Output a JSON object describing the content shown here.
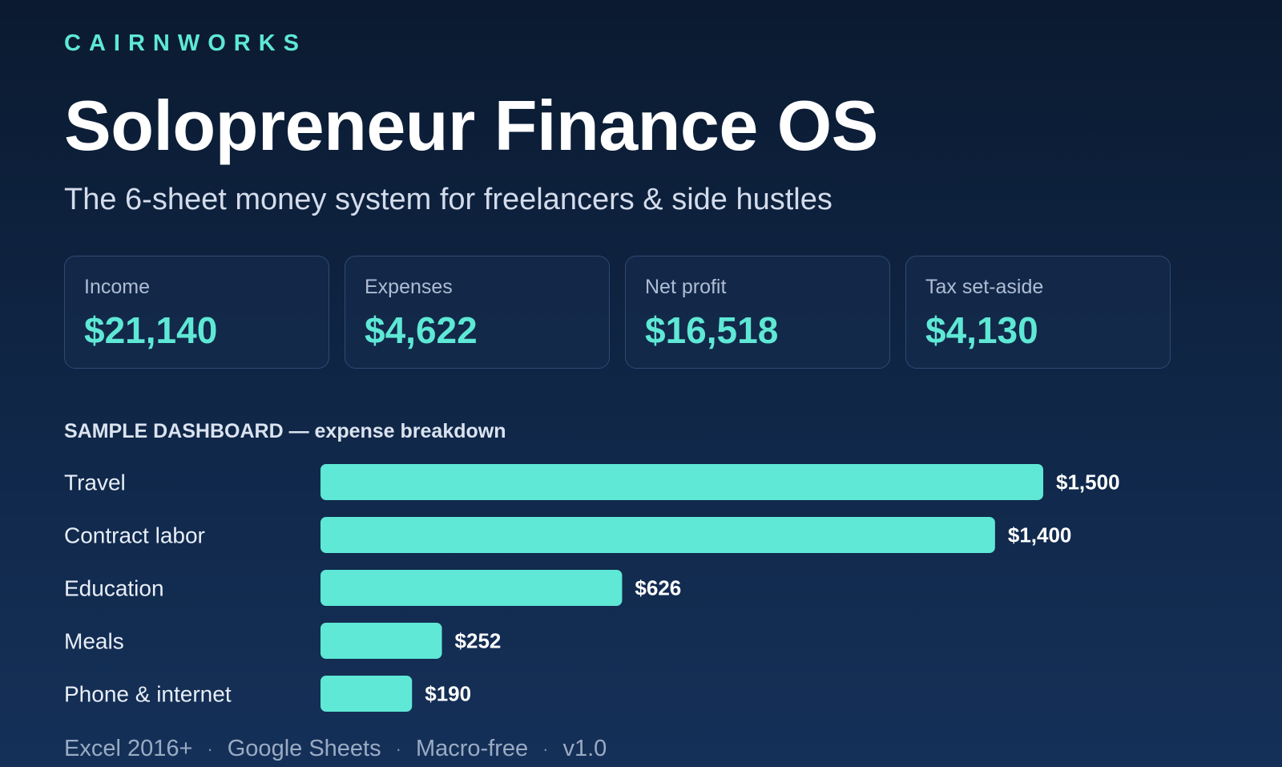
{
  "brand": "CAIRNWORKS",
  "title": "Solopreneur Finance OS",
  "subtitle": "The 6-sheet money system for freelancers & side hustles",
  "kpis": [
    {
      "label": "Income",
      "value": "$21,140"
    },
    {
      "label": "Expenses",
      "value": "$4,622"
    },
    {
      "label": "Net profit",
      "value": "$16,518"
    },
    {
      "label": "Tax set-aside",
      "value": "$4,130"
    }
  ],
  "colors": {
    "accent": "#5ee8d5",
    "bar": "#5ee8d5",
    "background": "#0f2444"
  },
  "chart_data": {
    "type": "bar",
    "orientation": "horizontal",
    "title": "SAMPLE DASHBOARD — expense breakdown",
    "categories": [
      "Travel",
      "Contract labor",
      "Education",
      "Meals",
      "Phone & internet"
    ],
    "values": [
      1500,
      1400,
      626,
      252,
      190
    ],
    "value_labels": [
      "$1,500",
      "$1,400",
      "$626",
      "$252",
      "$190"
    ],
    "xlim": [
      0,
      1500
    ],
    "grid": false,
    "legend": "none"
  },
  "footer": {
    "items": [
      "Excel 2016+",
      "Google Sheets",
      "Macro-free",
      "v1.0"
    ],
    "separator": "·"
  }
}
